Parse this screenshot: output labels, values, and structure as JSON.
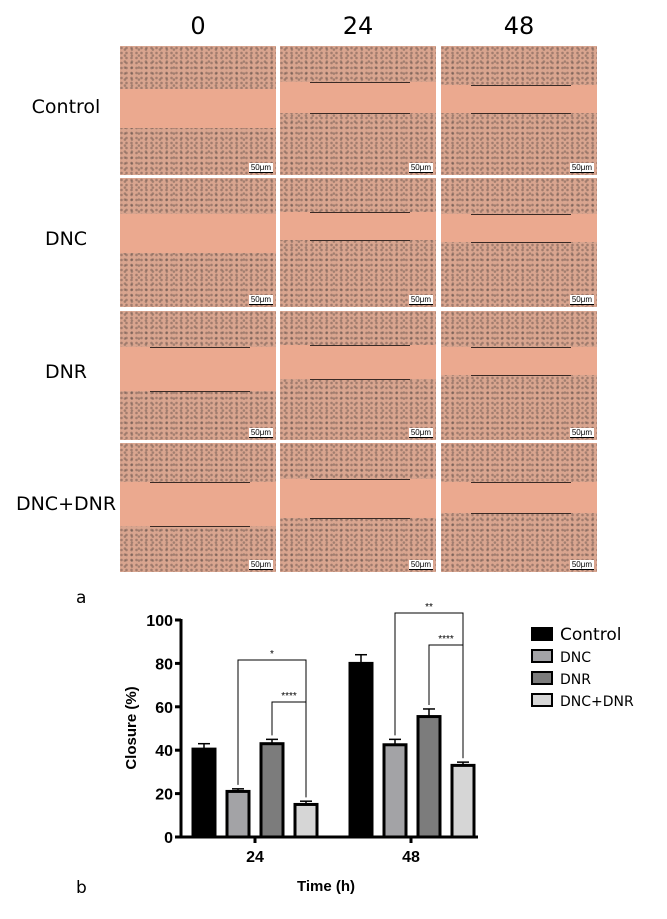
{
  "figure_a": {
    "panel_label": "a",
    "columns": [
      "0",
      "24",
      "48"
    ],
    "rows": [
      "Control",
      "DNC",
      "DNR",
      "DNC+DNR"
    ],
    "scale_bar": "50μm"
  },
  "figure_b": {
    "panel_label": "b"
  },
  "chart_data": {
    "type": "bar",
    "categories": [
      "24",
      "48"
    ],
    "series": [
      {
        "name": "Control",
        "values": [
          40.5,
          80
        ],
        "errors": [
          2.5,
          4
        ],
        "color": "#000000"
      },
      {
        "name": "DNC",
        "values": [
          21,
          42.5
        ],
        "errors": [
          1.2,
          2.5
        ],
        "color": "#a3a3a6"
      },
      {
        "name": "DNR",
        "values": [
          43,
          55.5
        ],
        "errors": [
          2,
          3.5
        ],
        "color": "#7c7c7c"
      },
      {
        "name": "DNC+DNR",
        "values": [
          15,
          33
        ],
        "errors": [
          1.5,
          1.5
        ],
        "color": "#d6d6d6"
      }
    ],
    "significance": [
      {
        "category": "24",
        "from": "DNC",
        "to": "DNC+DNR",
        "label": "*"
      },
      {
        "category": "24",
        "from": "DNR",
        "to": "DNC+DNR",
        "label": "****"
      },
      {
        "category": "48",
        "from": "DNC",
        "to": "DNC+DNR",
        "label": "**"
      },
      {
        "category": "48",
        "from": "DNR",
        "to": "DNC+DNR",
        "label": "****"
      }
    ],
    "title": "",
    "xlabel": "Time (h)",
    "ylabel": "Closure (%)",
    "ylim": [
      0,
      100
    ],
    "yticks": [
      "0",
      "20",
      "40",
      "60",
      "80",
      "100"
    ],
    "legend": "right"
  }
}
